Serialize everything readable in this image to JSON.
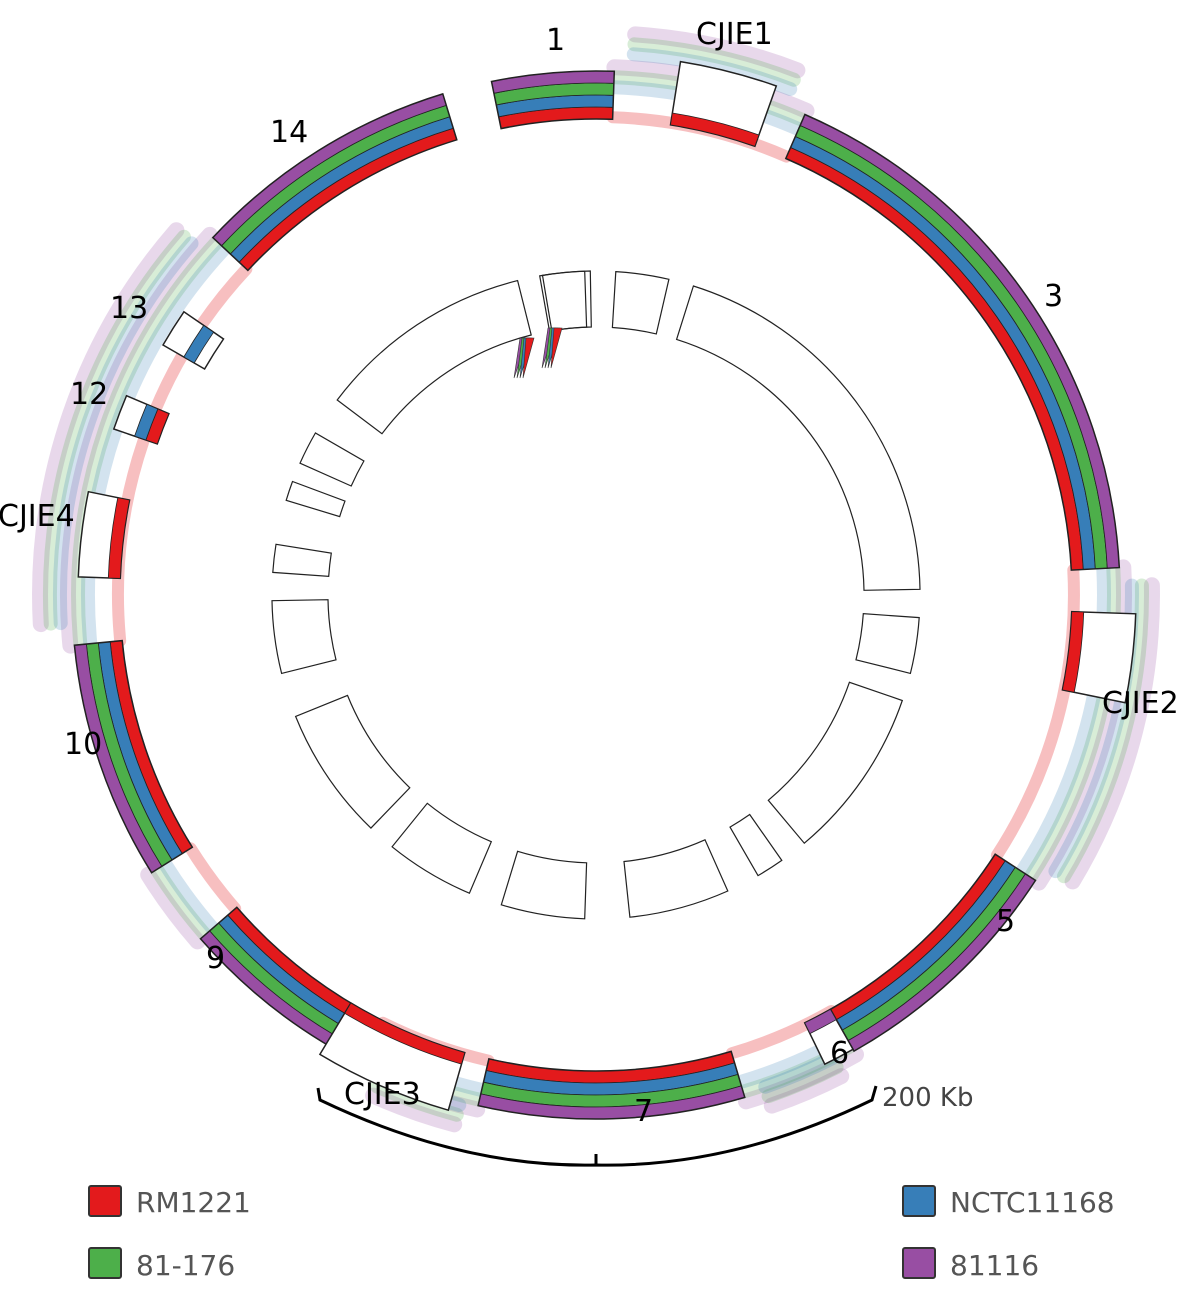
{
  "colors": {
    "RM1221": "#e31a1c",
    "NCTC11168": "#377eb8",
    "81-176": "#4daf4a",
    "81116": "#984ea3"
  },
  "legend": [
    {
      "name": "RM1221",
      "color": "#e31a1c"
    },
    {
      "name": "NCTC11168",
      "color": "#377eb8"
    },
    {
      "name": "81-176",
      "color": "#4daf4a"
    },
    {
      "name": "81116",
      "color": "#984ea3"
    }
  ],
  "segment_labels": [
    "1",
    "CJIE1",
    "3",
    "CJIE2",
    "5",
    "6",
    "7",
    "CJIE3",
    "9",
    "10",
    "CJIE4",
    "12",
    "13",
    "14"
  ],
  "scale": {
    "label": "200 Kb"
  }
}
